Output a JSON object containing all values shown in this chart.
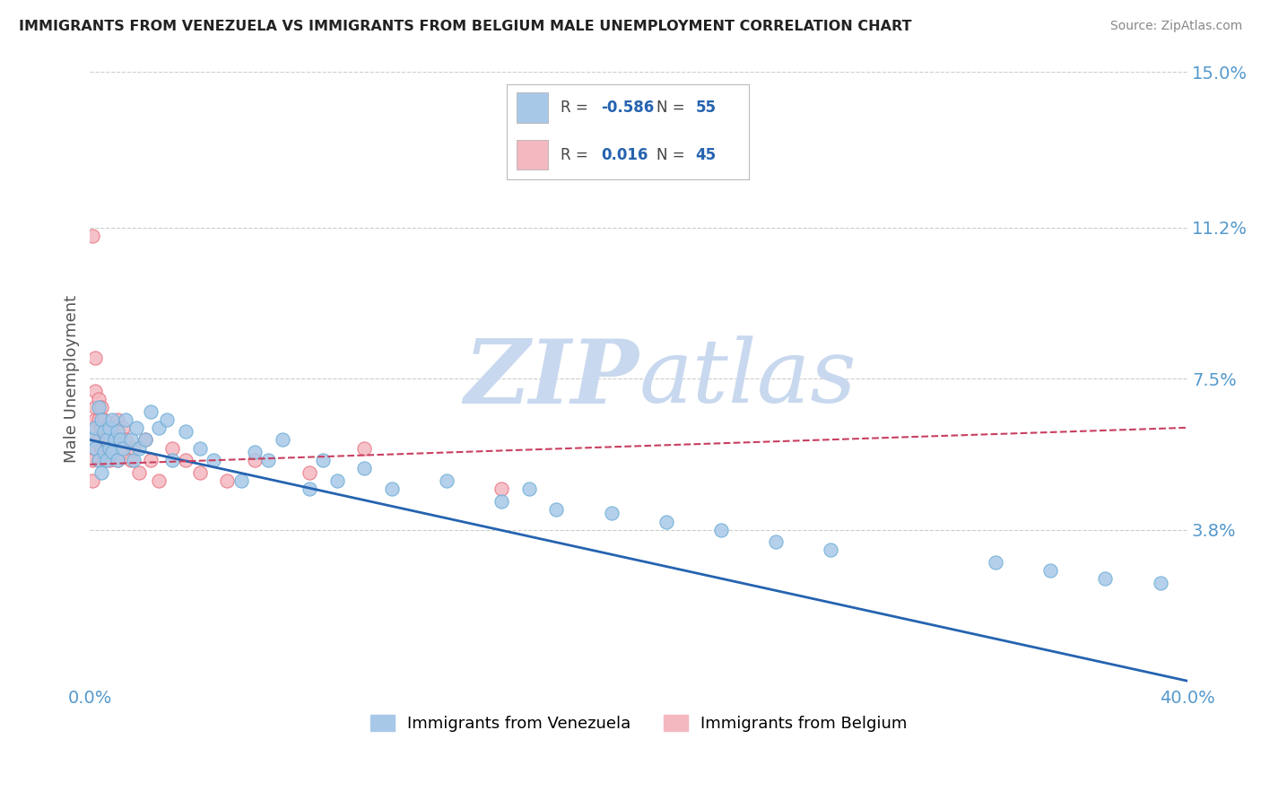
{
  "title": "IMMIGRANTS FROM VENEZUELA VS IMMIGRANTS FROM BELGIUM MALE UNEMPLOYMENT CORRELATION CHART",
  "source": "Source: ZipAtlas.com",
  "ylabel": "Male Unemployment",
  "xlim": [
    0.0,
    0.4
  ],
  "ylim": [
    0.0,
    0.15
  ],
  "yticks": [
    0.038,
    0.075,
    0.112,
    0.15
  ],
  "ytick_labels": [
    "3.8%",
    "7.5%",
    "11.2%",
    "15.0%"
  ],
  "xticks": [
    0.0,
    0.4
  ],
  "xtick_labels": [
    "0.0%",
    "40.0%"
  ],
  "series_venezuela": {
    "name": "Immigrants from Venezuela",
    "color": "#a8c8e8",
    "edge_color": "#6baed6",
    "R": -0.586,
    "N": 55,
    "points_x": [
      0.001,
      0.002,
      0.002,
      0.003,
      0.003,
      0.004,
      0.004,
      0.005,
      0.005,
      0.006,
      0.006,
      0.007,
      0.007,
      0.008,
      0.008,
      0.009,
      0.01,
      0.01,
      0.011,
      0.012,
      0.013,
      0.015,
      0.016,
      0.017,
      0.018,
      0.02,
      0.022,
      0.025,
      0.028,
      0.03,
      0.035,
      0.04,
      0.045,
      0.055,
      0.06,
      0.065,
      0.07,
      0.08,
      0.085,
      0.09,
      0.1,
      0.11,
      0.13,
      0.15,
      0.16,
      0.17,
      0.19,
      0.21,
      0.23,
      0.25,
      0.27,
      0.33,
      0.35,
      0.37,
      0.39
    ],
    "points_y": [
      0.06,
      0.058,
      0.063,
      0.055,
      0.068,
      0.052,
      0.065,
      0.057,
      0.062,
      0.06,
      0.055,
      0.063,
      0.058,
      0.057,
      0.065,
      0.06,
      0.062,
      0.055,
      0.06,
      0.058,
      0.065,
      0.06,
      0.055,
      0.063,
      0.058,
      0.06,
      0.067,
      0.063,
      0.065,
      0.055,
      0.062,
      0.058,
      0.055,
      0.05,
      0.057,
      0.055,
      0.06,
      0.048,
      0.055,
      0.05,
      0.053,
      0.048,
      0.05,
      0.045,
      0.048,
      0.043,
      0.042,
      0.04,
      0.038,
      0.035,
      0.033,
      0.03,
      0.028,
      0.026,
      0.025
    ]
  },
  "series_belgium": {
    "name": "Immigrants from Belgium",
    "color": "#f4b8c0",
    "edge_color": "#e87080",
    "R": 0.016,
    "N": 45,
    "points_x": [
      0.001,
      0.001,
      0.001,
      0.001,
      0.002,
      0.002,
      0.002,
      0.002,
      0.002,
      0.003,
      0.003,
      0.003,
      0.003,
      0.004,
      0.004,
      0.004,
      0.005,
      0.005,
      0.005,
      0.006,
      0.006,
      0.007,
      0.007,
      0.008,
      0.008,
      0.009,
      0.01,
      0.01,
      0.011,
      0.012,
      0.013,
      0.015,
      0.016,
      0.018,
      0.02,
      0.022,
      0.025,
      0.03,
      0.035,
      0.04,
      0.05,
      0.06,
      0.08,
      0.1,
      0.15
    ],
    "points_y": [
      0.11,
      0.062,
      0.055,
      0.05,
      0.08,
      0.065,
      0.058,
      0.072,
      0.068,
      0.06,
      0.055,
      0.065,
      0.07,
      0.058,
      0.063,
      0.068,
      0.055,
      0.06,
      0.065,
      0.058,
      0.063,
      0.06,
      0.055,
      0.058,
      0.063,
      0.06,
      0.065,
      0.055,
      0.058,
      0.063,
      0.06,
      0.055,
      0.058,
      0.052,
      0.06,
      0.055,
      0.05,
      0.058,
      0.055,
      0.052,
      0.05,
      0.055,
      0.052,
      0.058,
      0.048
    ]
  },
  "trend_venezuela_color": "#2563b0",
  "trend_belgium_color": "#c84060",
  "legend_R_color": "#2563b0",
  "watermark_zip": "ZIP",
  "watermark_atlas": "atlas",
  "watermark_color": "#c8d8ee",
  "background_color": "#ffffff",
  "grid_color": "#cccccc",
  "axis_label_color": "#5599cc",
  "title_color": "#222222"
}
